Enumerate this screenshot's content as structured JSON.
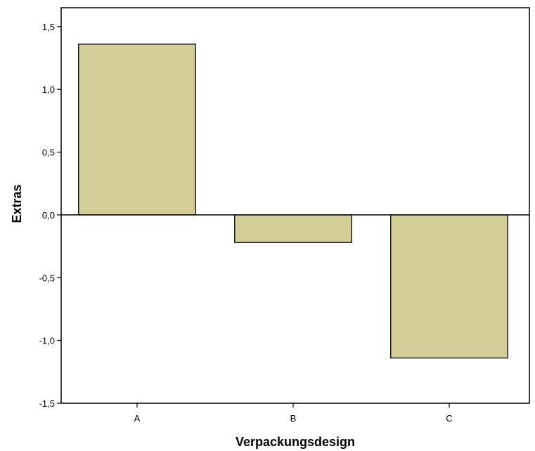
{
  "chart_data": {
    "type": "bar",
    "categories": [
      "A",
      "B",
      "C"
    ],
    "values": [
      1.36,
      -0.22,
      -1.14
    ],
    "xlabel": "Verpackungsdesign",
    "ylabel": "Extras",
    "ylim": [
      -1.5,
      1.65
    ],
    "yticks": [
      -1.5,
      -1.0,
      -0.5,
      0.0,
      0.5,
      1.0,
      1.5
    ],
    "ytick_labels": [
      "-1,5",
      "-1,0",
      "-0,5",
      "0,0",
      "0,5",
      "1,0",
      "1,5"
    ],
    "grid": false,
    "legend": "none",
    "baseline": 0,
    "colors": {
      "bar_fill": "#d3cd98",
      "bar_stroke": "#000000",
      "axis": "#000000",
      "background": "#ffffff"
    }
  }
}
